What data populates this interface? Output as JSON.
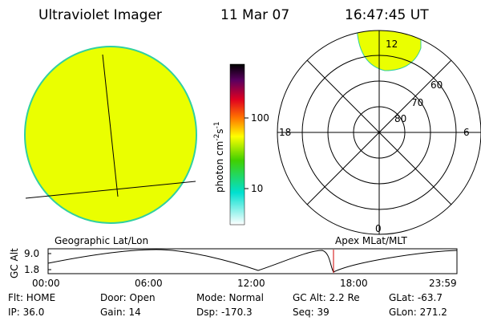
{
  "header": {
    "title": "Ultraviolet Imager",
    "date": "11 Mar 07",
    "time": "16:47:45 UT"
  },
  "colorbar": {
    "unit": "photon cm",
    "exp1": "-2",
    "unit2": "s",
    "exp2": "-1",
    "ticks": [
      "100",
      "10"
    ]
  },
  "polar": {
    "mlt_labels": [
      "12",
      "18",
      "6",
      "0"
    ],
    "lat_labels": [
      "60",
      "70",
      "80"
    ]
  },
  "geo_label": "Geographic Lat/Lon",
  "apex_label": "Apex MLat/MLT",
  "altitude": {
    "axis_label": "GC Alt",
    "ticks": [
      "9.0",
      "1.8"
    ],
    "times": [
      "00:00",
      "06:00",
      "12:00",
      "18:00",
      "23:59"
    ]
  },
  "status": [
    [
      "Flt: HOME",
      "Door: Open",
      "Mode: Normal",
      "GC Alt: 2.2 Re",
      "GLat: -63.7"
    ],
    [
      "IP: 36.0",
      "Gain: 14",
      "Dsp: -170.3",
      "Seq: 39",
      "GLon: 271.2"
    ]
  ]
}
